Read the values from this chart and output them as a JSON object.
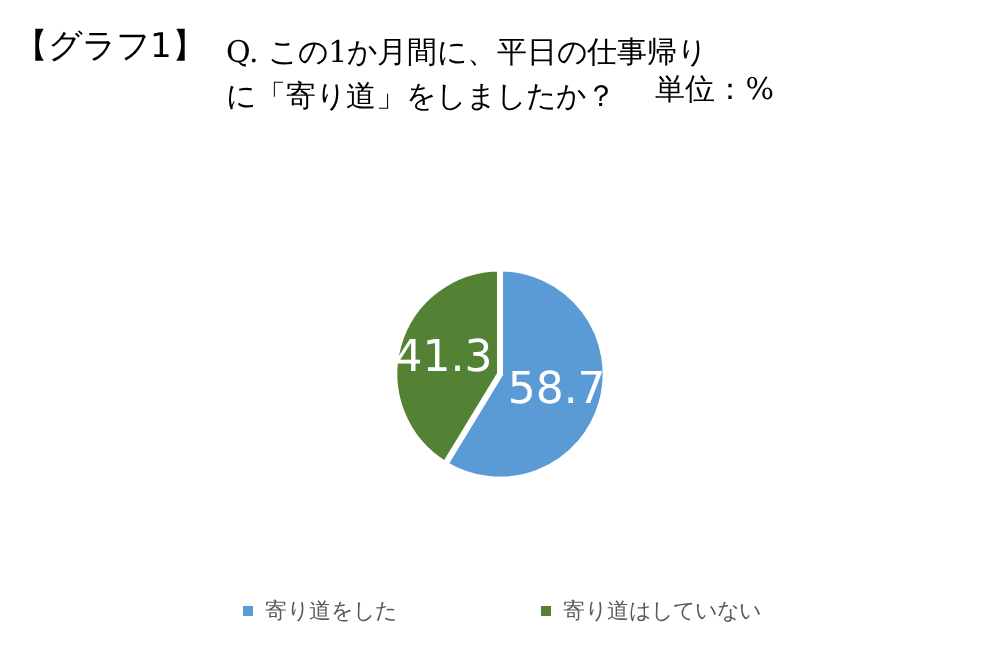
{
  "chart_data": {
    "type": "pie",
    "title": "【グラフ1】",
    "subtitle": "Q. この1か月間に、平日の仕事帰りに「寄り道」をしましたか？",
    "annotations": [
      "単位：%"
    ],
    "categories": [
      "寄り道をした",
      "寄り道はしていない"
    ],
    "values": [
      58.7,
      41.3
    ],
    "colors": [
      "#5b9bd5",
      "#548235"
    ],
    "data_labels": true,
    "legend": "bottom"
  }
}
